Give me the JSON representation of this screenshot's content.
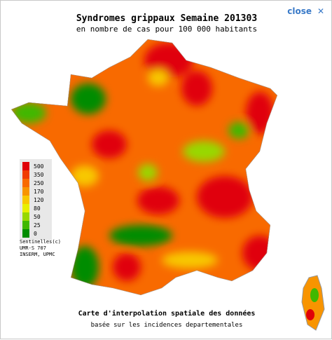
{
  "close": "close",
  "header": {
    "title": "Syndromes grippaux Semaine 201303",
    "subtitle": "en nombre de cas pour 100 000 habitants"
  },
  "legend": {
    "items": [
      {
        "label": "500",
        "color": "#e00008"
      },
      {
        "label": "350",
        "color": "#f03c00"
      },
      {
        "label": "250",
        "color": "#f86a00"
      },
      {
        "label": "170",
        "color": "#f89400"
      },
      {
        "label": "120",
        "color": "#f8c800"
      },
      {
        "label": "80",
        "color": "#e8f000"
      },
      {
        "label": "50",
        "color": "#98d800"
      },
      {
        "label": "25",
        "color": "#40b800"
      },
      {
        "label": "0",
        "color": "#008c00"
      }
    ]
  },
  "credits": [
    "Sentinelles(c)",
    "UMR-S 707",
    "INSERM, UPMC"
  ],
  "footer": {
    "line1": "Carte d'interpolation spatiale des données",
    "line2": "basée sur les incidences departementales"
  }
}
